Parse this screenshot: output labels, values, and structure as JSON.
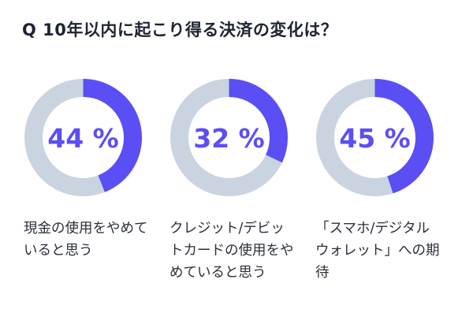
{
  "title": "Q 10年以内に起こり得る決済の変化は？",
  "chart_data": [
    {
      "type": "pie",
      "values": [
        44,
        56
      ],
      "value_label": "44 %",
      "caption": "現金の使用をやめていると思う",
      "colors": {
        "highlight": "#5b4ef4",
        "remainder": "#c9d4e0"
      }
    },
    {
      "type": "pie",
      "values": [
        32,
        68
      ],
      "value_label": "32 %",
      "caption": "クレジット/デビットカードの使用をやめていると思う",
      "colors": {
        "highlight": "#5b4ef4",
        "remainder": "#c9d4e0"
      }
    },
    {
      "type": "pie",
      "values": [
        45,
        55
      ],
      "value_label": "45 %",
      "caption": "「スマホ/デジタルウォレット」への期待",
      "colors": {
        "highlight": "#5b4ef4",
        "remainder": "#c9d4e0"
      }
    }
  ]
}
